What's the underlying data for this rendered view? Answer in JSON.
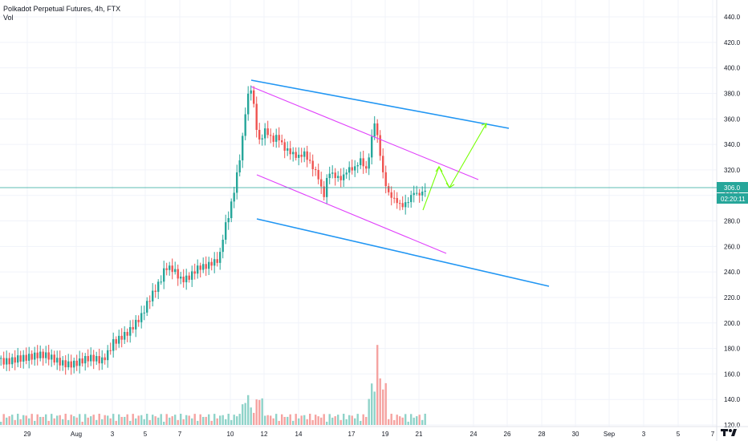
{
  "legend": {
    "symbol_line": "Polkadot Perpetual Futures, 4h, FTX",
    "indicator": "Vol"
  },
  "price_axis": {
    "ticks": [
      "440.0",
      "420.0",
      "400.0",
      "380.0",
      "360.0",
      "340.0",
      "320.0",
      "300.0",
      "280.0",
      "260.0",
      "240.0",
      "220.0",
      "200.0",
      "180.0",
      "160.0",
      "140.0",
      "120.0"
    ],
    "last_price_label": "306.0",
    "countdown_label": "02:20:11"
  },
  "time_axis": {
    "ticks": [
      "29",
      "Aug",
      "3",
      "5",
      "7",
      "10",
      "12",
      "14",
      "17",
      "19",
      "21",
      "24",
      "26",
      "28",
      "30",
      "Sep",
      "3",
      "5",
      "7"
    ]
  },
  "colors": {
    "up": "#26a69a",
    "down": "#ef5350",
    "vol_up": "#8fd3c9",
    "vol_down": "#f5a3a1",
    "trend_blue": "#2196f3",
    "channel_pink": "#e040fb",
    "projection_green": "#76ff03",
    "last_price_line": "#26a69a",
    "countdown_bg": "#26a69a"
  },
  "chart_data": {
    "type": "candlestick",
    "symbol": "Polkadot Perpetual Futures",
    "interval": "4h",
    "exchange": "FTX",
    "ylim": [
      120,
      440
    ],
    "y_unit": "price",
    "last_price": 306.0,
    "volume_panel": true,
    "annotations": [
      {
        "kind": "trendline",
        "color": "blue",
        "from": [
          0,
          390
        ],
        "to": [
          1,
          350
        ]
      },
      {
        "kind": "trendline",
        "color": "blue",
        "from": [
          0,
          282
        ],
        "to": [
          1,
          230
        ]
      },
      {
        "kind": "channel",
        "color": "pink",
        "from": [
          0,
          378
        ],
        "to": [
          1,
          312
        ]
      },
      {
        "kind": "channel",
        "color": "pink",
        "from": [
          0,
          315
        ],
        "to": [
          1,
          254
        ]
      },
      {
        "kind": "projection_path",
        "color": "green",
        "points": [
          [
            0,
            292
          ],
          [
            0.15,
            322
          ],
          [
            0.28,
            305
          ],
          [
            0.55,
            356
          ]
        ]
      }
    ]
  }
}
